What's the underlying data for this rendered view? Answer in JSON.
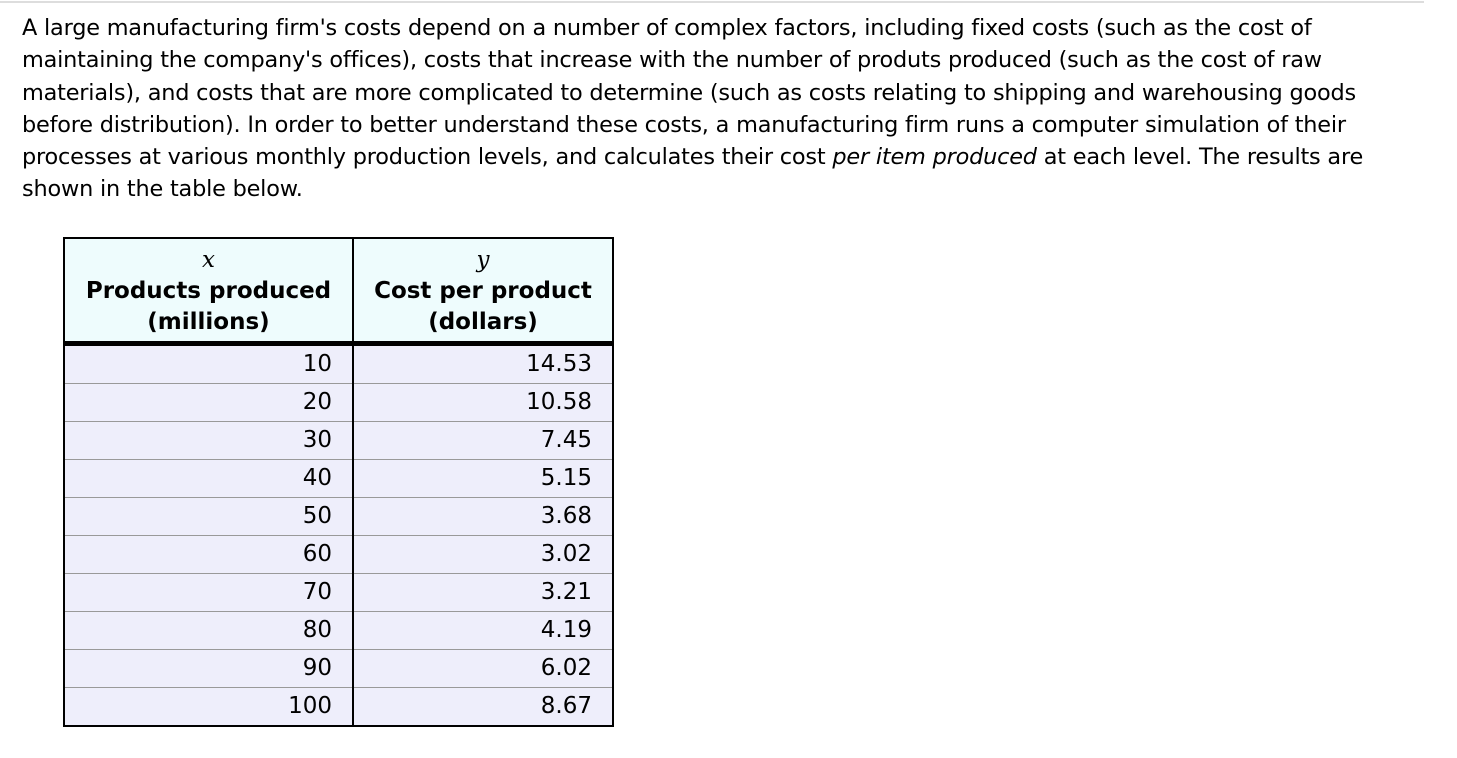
{
  "paragraph": {
    "before": "A large manufacturing firm's costs depend on a number of complex factors, including fixed costs (such as the cost of maintaining the company's offices), costs that increase with the number of produts produced (such as the cost of raw materials), and costs that are more complicated to determine (such as costs relating to shipping and warehousing goods before distribution). In order to better understand these costs, a manufacturing firm runs a computer simulation of their processes at various monthly production levels, and calculates their cost ",
    "emphasis": "per item produced",
    "after": " at each level. The results are shown in the table below."
  },
  "table": {
    "columns": [
      {
        "variable": "x",
        "label": "Products produced",
        "unit": "(millions)"
      },
      {
        "variable": "y",
        "label": "Cost per product",
        "unit": "(dollars)"
      }
    ],
    "rows": [
      [
        10,
        14.53
      ],
      [
        20,
        10.58
      ],
      [
        30,
        7.45
      ],
      [
        40,
        5.15
      ],
      [
        50,
        3.68
      ],
      [
        60,
        3.02
      ],
      [
        70,
        3.21
      ],
      [
        80,
        4.19
      ],
      [
        90,
        6.02
      ],
      [
        100,
        8.67
      ]
    ]
  }
}
